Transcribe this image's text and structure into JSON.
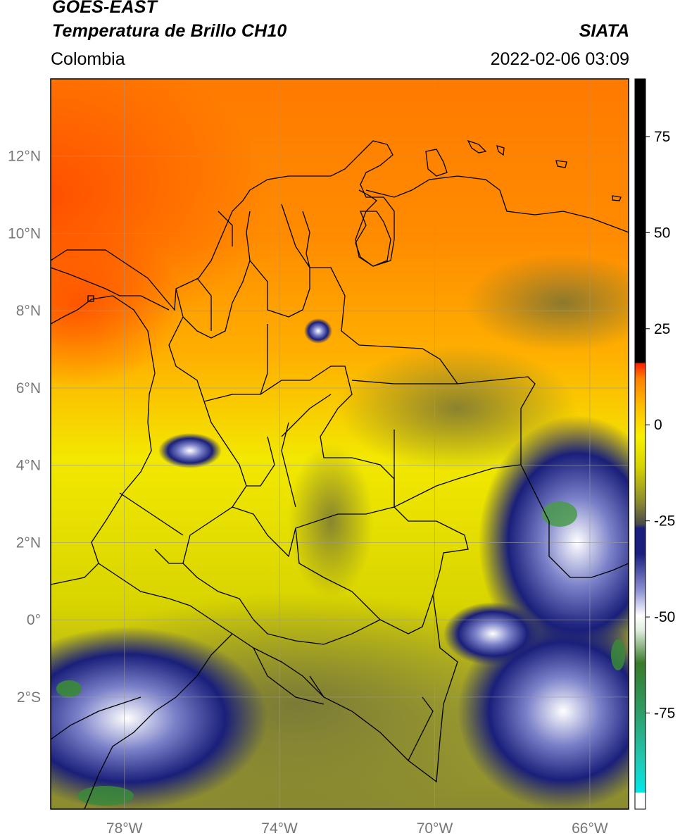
{
  "header": {
    "satellite": "GOES-EAST",
    "product": "Temperatura de Brillo CH10",
    "region": "Colombia",
    "organization": "SIATA",
    "datetime": "2022-02-06 03:09"
  },
  "map": {
    "lon_range": [
      -79.9,
      -65.0
    ],
    "lat_range": [
      -4.9,
      14.0
    ],
    "lon_ticks": [
      {
        "value": -78,
        "label": "78°W"
      },
      {
        "value": -74,
        "label": "74°W"
      },
      {
        "value": -70,
        "label": "70°W"
      },
      {
        "value": -66,
        "label": "66°W"
      }
    ],
    "lat_ticks": [
      {
        "value": 12,
        "label": "12°N"
      },
      {
        "value": 10,
        "label": "10°N"
      },
      {
        "value": 8,
        "label": "8°N"
      },
      {
        "value": 6,
        "label": "6°N"
      },
      {
        "value": 4,
        "label": "4°N"
      },
      {
        "value": 2,
        "label": "2°N"
      },
      {
        "value": 0,
        "label": "0°"
      },
      {
        "value": -2,
        "label": "2°S"
      }
    ],
    "gridlines": true,
    "colors": {
      "warm": "#ff5a00",
      "mid": "#ff9a00",
      "yellow": "#f0ea00",
      "olive": "#8a8a30",
      "cold_navy": "#1a1f7a",
      "cold_white": "#ffffff",
      "cold_green": "#3a8a3a",
      "border": "#000000"
    }
  },
  "colorbar": {
    "range": [
      -100,
      90
    ],
    "ticks": [
      {
        "value": 75,
        "label": "75"
      },
      {
        "value": 50,
        "label": "50"
      },
      {
        "value": 25,
        "label": "25"
      },
      {
        "value": 0,
        "label": "0"
      },
      {
        "value": -25,
        "label": "-25"
      },
      {
        "value": -50,
        "label": "-50"
      },
      {
        "value": -75,
        "label": "-75"
      }
    ]
  }
}
